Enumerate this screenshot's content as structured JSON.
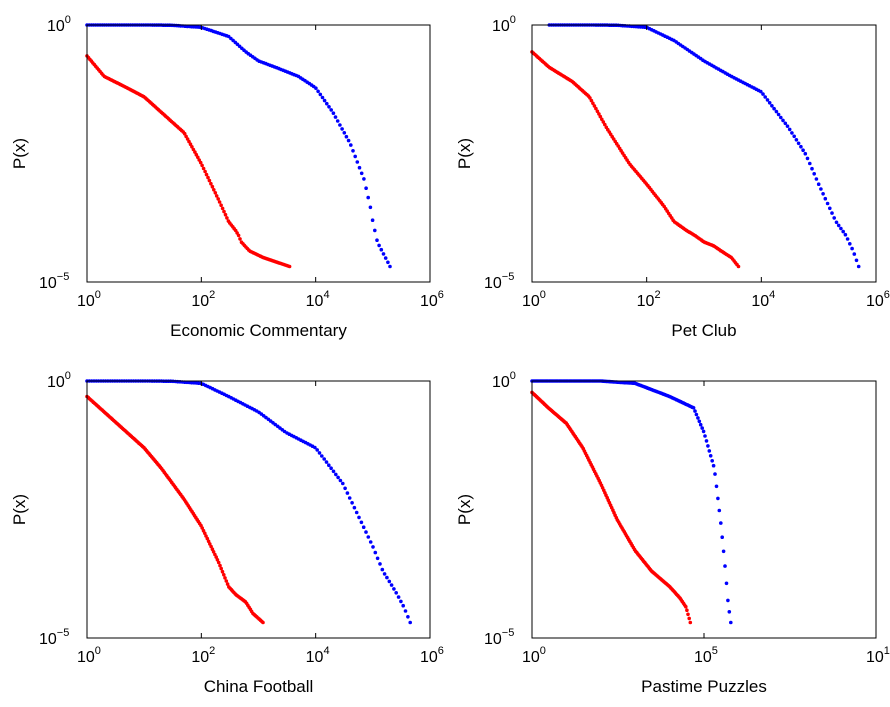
{
  "colors": {
    "series_a": "#ff0000",
    "series_b": "#0000ff",
    "axes": "#000000"
  },
  "chart_data": [
    {
      "type": "scatter",
      "xlabel": "Economic Commentary",
      "ylabel": "P(x)",
      "xscale": "log",
      "yscale": "log",
      "xlim": [
        1,
        1000000
      ],
      "ylim": [
        1e-05,
        1
      ],
      "xticks": [
        {
          "base": "10",
          "exp": "0",
          "value": 1
        },
        {
          "base": "10",
          "exp": "2",
          "value": 100
        },
        {
          "base": "10",
          "exp": "4",
          "value": 10000
        },
        {
          "base": "10",
          "exp": "6",
          "value": 1000000
        }
      ],
      "yticks": [
        {
          "base": "10",
          "exp": "−5",
          "value": 1e-05
        },
        {
          "base": "10",
          "exp": "0",
          "value": 1
        }
      ],
      "grid": false,
      "legend": "none",
      "series": [
        {
          "color": "#ff0000",
          "x": [
            1,
            2,
            5,
            10,
            20,
            50,
            100,
            200,
            300,
            400,
            450,
            500,
            700,
            1200,
            3500
          ],
          "y": [
            0.25,
            0.1,
            0.06,
            0.04,
            0.02,
            0.008,
            0.002,
            0.0004,
            0.00015,
            0.0001,
            8e-05,
            6e-05,
            4e-05,
            3e-05,
            2e-05
          ]
        },
        {
          "color": "#0000ff",
          "x": [
            1,
            2,
            5,
            10,
            30,
            100,
            300,
            600,
            1000,
            2000,
            5000,
            10000,
            20000,
            40000,
            70000,
            90000,
            100000,
            120000,
            200000
          ],
          "y": [
            1,
            1,
            1,
            1,
            0.99,
            0.9,
            0.6,
            0.3,
            0.2,
            0.15,
            0.1,
            0.06,
            0.02,
            0.005,
            0.001,
            0.0003,
            0.00015,
            6e-05,
            2e-05
          ]
        }
      ]
    },
    {
      "type": "scatter",
      "xlabel": "Pet Club",
      "ylabel": "P(x)",
      "xscale": "log",
      "yscale": "log",
      "xlim": [
        1,
        1000000
      ],
      "ylim": [
        1e-05,
        1
      ],
      "xticks": [
        {
          "base": "10",
          "exp": "0",
          "value": 1
        },
        {
          "base": "10",
          "exp": "2",
          "value": 100
        },
        {
          "base": "10",
          "exp": "4",
          "value": 10000
        },
        {
          "base": "10",
          "exp": "6",
          "value": 1000000
        }
      ],
      "yticks": [
        {
          "base": "10",
          "exp": "−5",
          "value": 1e-05
        },
        {
          "base": "10",
          "exp": "0",
          "value": 1
        }
      ],
      "grid": false,
      "legend": "none",
      "series": [
        {
          "color": "#ff0000",
          "x": [
            1,
            2,
            5,
            10,
            20,
            50,
            100,
            200,
            300,
            500,
            700,
            1000,
            1500,
            2000,
            3000,
            4000
          ],
          "y": [
            0.3,
            0.15,
            0.08,
            0.04,
            0.01,
            0.002,
            0.0008,
            0.0003,
            0.00015,
            0.0001,
            8e-05,
            6e-05,
            5e-05,
            4e-05,
            3e-05,
            2e-05
          ]
        },
        {
          "color": "#0000ff",
          "x": [
            2,
            5,
            10,
            30,
            100,
            300,
            1000,
            3000,
            10000,
            30000,
            60000,
            100000,
            150000,
            200000,
            300000,
            400000,
            500000
          ],
          "y": [
            1,
            1,
            1,
            0.99,
            0.9,
            0.5,
            0.2,
            0.1,
            0.05,
            0.01,
            0.003,
            0.0008,
            0.0003,
            0.00015,
            8e-05,
            4e-05,
            2e-05
          ]
        }
      ]
    },
    {
      "type": "scatter",
      "xlabel": "China Football",
      "ylabel": "P(x)",
      "xscale": "log",
      "yscale": "log",
      "xlim": [
        1,
        1000000
      ],
      "ylim": [
        1e-05,
        1
      ],
      "xticks": [
        {
          "base": "10",
          "exp": "0",
          "value": 1
        },
        {
          "base": "10",
          "exp": "2",
          "value": 100
        },
        {
          "base": "10",
          "exp": "4",
          "value": 10000
        },
        {
          "base": "10",
          "exp": "6",
          "value": 1000000
        }
      ],
      "yticks": [
        {
          "base": "10",
          "exp": "−5",
          "value": 1e-05
        },
        {
          "base": "10",
          "exp": "0",
          "value": 1
        }
      ],
      "grid": false,
      "legend": "none",
      "series": [
        {
          "color": "#ff0000",
          "x": [
            1,
            2,
            5,
            10,
            20,
            50,
            100,
            200,
            300,
            400,
            600,
            800,
            1200
          ],
          "y": [
            0.5,
            0.25,
            0.1,
            0.05,
            0.02,
            0.005,
            0.0015,
            0.0003,
            0.0001,
            7e-05,
            5e-05,
            3e-05,
            2e-05
          ]
        },
        {
          "color": "#0000ff",
          "x": [
            1,
            2,
            5,
            10,
            30,
            100,
            300,
            1000,
            3000,
            10000,
            30000,
            60000,
            100000,
            150000,
            250000,
            350000,
            450000
          ],
          "y": [
            1,
            1,
            1,
            1,
            0.99,
            0.9,
            0.5,
            0.25,
            0.1,
            0.05,
            0.01,
            0.002,
            0.0006,
            0.0002,
            8e-05,
            4e-05,
            2e-05
          ]
        }
      ]
    },
    {
      "type": "scatter",
      "xlabel": "Pastime Puzzles",
      "ylabel": "P(x)",
      "xscale": "log",
      "yscale": "log",
      "xlim": [
        1,
        10000000000
      ],
      "ylim": [
        1e-05,
        1
      ],
      "xticks": [
        {
          "base": "10",
          "exp": "0",
          "value": 1
        },
        {
          "base": "10",
          "exp": "5",
          "value": 100000
        },
        {
          "base": "10",
          "exp": "10",
          "value": 10000000000
        }
      ],
      "yticks": [
        {
          "base": "10",
          "exp": "−5",
          "value": 1e-05
        },
        {
          "base": "10",
          "exp": "0",
          "value": 1
        }
      ],
      "grid": false,
      "legend": "none",
      "series": [
        {
          "color": "#ff0000",
          "x": [
            1,
            3,
            10,
            30,
            100,
            300,
            1000,
            3000,
            10000,
            20000,
            30000,
            40000
          ],
          "y": [
            0.6,
            0.3,
            0.15,
            0.05,
            0.01,
            0.002,
            0.0005,
            0.0002,
            0.0001,
            6e-05,
            4e-05,
            2e-05
          ]
        },
        {
          "color": "#0000ff",
          "x": [
            1,
            3,
            10,
            100,
            1000,
            10000,
            50000,
            100000,
            200000,
            300000,
            400000,
            500000,
            600000
          ],
          "y": [
            1,
            1,
            1,
            1,
            0.9,
            0.5,
            0.3,
            0.1,
            0.02,
            0.002,
            0.0003,
            5e-05,
            2e-05
          ]
        }
      ]
    }
  ]
}
